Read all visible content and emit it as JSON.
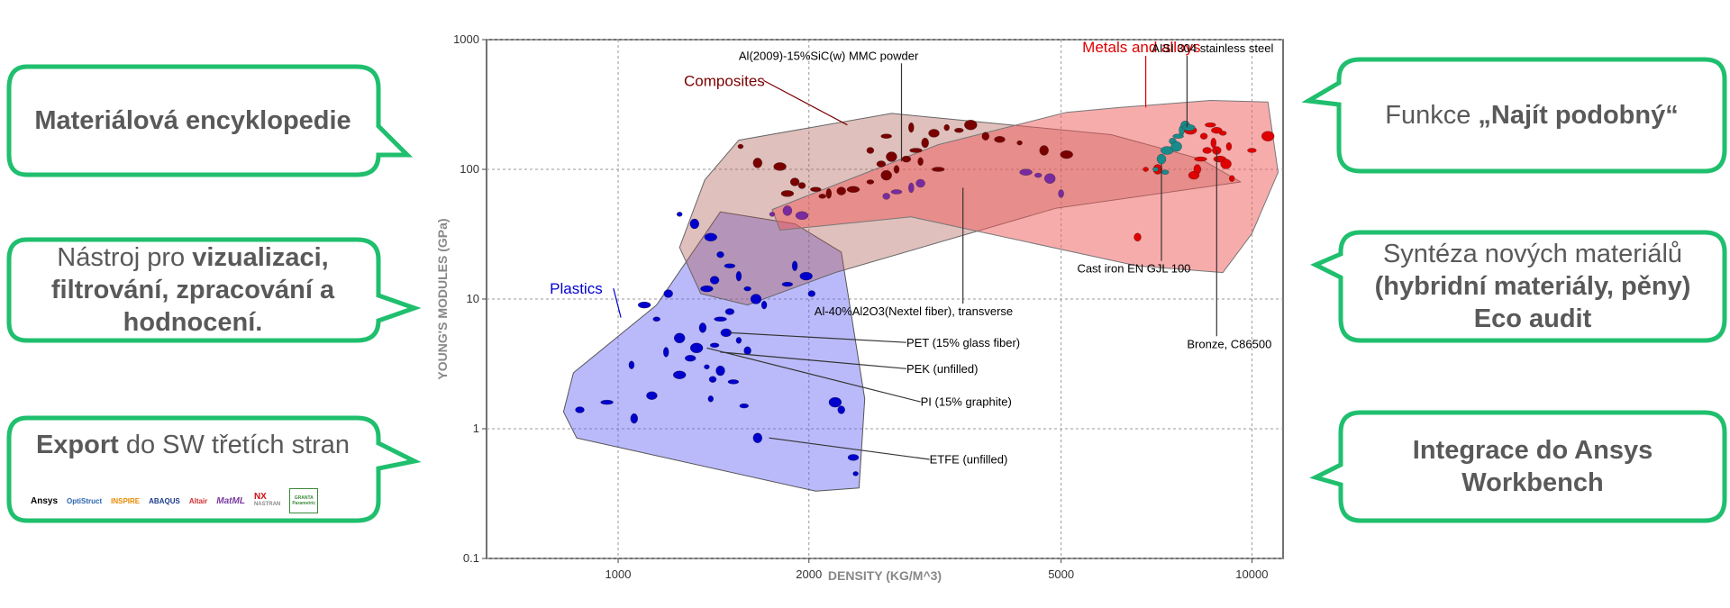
{
  "callouts": {
    "encyclopedia": {
      "bold": "Materiálová encyklopedie"
    },
    "visualization": {
      "pre": "Nástroj pro ",
      "bold1": "vizualizaci,",
      "bold2": "filtrování, zpracování a",
      "bold3": "hodnocení."
    },
    "export": {
      "bold": "Export",
      "rest": " do SW třetích stran"
    },
    "similar": {
      "pre": "Funkce ",
      "bold": "„Najít podobný“"
    },
    "synthesis": {
      "line1": "Syntéza nových materiálů",
      "line2": "(hybridní materiály, pěny)",
      "line3": "Eco audit"
    },
    "integration": {
      "line1": "Integrace do Ansys",
      "line2": "Workbench"
    }
  },
  "logos": [
    "Ansys",
    "OptiStruct",
    "INSPIRE",
    "ABAQUS",
    "Altair",
    "MatML",
    "NX",
    "NASTRAN"
  ],
  "logo_badge": "GRANTA Parametric",
  "colors": {
    "accent_green": "#1fbf6e",
    "text_gray": "#595959",
    "plastics": "#0000cc",
    "composites": "#7a0000",
    "metals": "#e00000",
    "cast_iron": "#1a8a8a"
  },
  "chart_data": {
    "type": "scatter",
    "xlabel": "DENSITY (KG/M^3)",
    "ylabel": "YOUNG'S MODULES (GPa)",
    "x_scale": "log",
    "y_scale": "log",
    "xlim": [
      620,
      11200
    ],
    "ylim": [
      0.1,
      1000
    ],
    "x_ticks": [
      1000,
      2000,
      5000,
      10000
    ],
    "x_tick_labels": [
      "1000",
      "2000",
      "5000",
      "10000"
    ],
    "y_ticks": [
      0.1,
      1,
      10,
      100,
      1000
    ],
    "y_tick_labels": [
      "0.1",
      "1",
      "10",
      "100",
      "1000"
    ],
    "grid": true,
    "envelopes": [
      {
        "name": "Plastics",
        "color": "#0000cc",
        "points": [
          [
            820,
            1.35
          ],
          [
            850,
            2.7
          ],
          [
            1150,
            9
          ],
          [
            1450,
            47
          ],
          [
            1900,
            38
          ],
          [
            2250,
            23
          ],
          [
            2450,
            1.7
          ],
          [
            2400,
            0.35
          ],
          [
            2050,
            0.33
          ],
          [
            860,
            0.85
          ]
        ]
      },
      {
        "name": "Composites",
        "color": "#7a0000",
        "points": [
          [
            1250,
            25
          ],
          [
            1370,
            83
          ],
          [
            1550,
            168
          ],
          [
            2700,
            270
          ],
          [
            6000,
            185
          ],
          [
            8300,
            120
          ],
          [
            9600,
            80
          ],
          [
            4900,
            50
          ],
          [
            2200,
            16
          ],
          [
            1600,
            9
          ],
          [
            1350,
            11
          ]
        ]
      },
      {
        "name": "Metals and alloys",
        "color": "#e00000",
        "points": [
          [
            1750,
            49
          ],
          [
            1800,
            34
          ],
          [
            2900,
            43
          ],
          [
            6600,
            18
          ],
          [
            9000,
            16
          ],
          [
            10000,
            32
          ],
          [
            11000,
            95
          ],
          [
            10600,
            330
          ],
          [
            8600,
            340
          ],
          [
            6200,
            300
          ],
          [
            5100,
            275
          ],
          [
            3200,
            155
          ]
        ]
      }
    ],
    "series": [
      {
        "name": "Plastics",
        "color": "#0000cc",
        "points": [
          [
            1250,
            45
          ],
          [
            1320,
            38
          ],
          [
            1400,
            30
          ],
          [
            1450,
            22
          ],
          [
            1500,
            18
          ],
          [
            1550,
            15
          ],
          [
            1420,
            14
          ],
          [
            1380,
            12
          ],
          [
            1600,
            12
          ],
          [
            1650,
            10
          ],
          [
            1700,
            9
          ],
          [
            1500,
            8
          ],
          [
            1450,
            7
          ],
          [
            1360,
            6
          ],
          [
            1480,
            5.5
          ],
          [
            1550,
            4.8
          ],
          [
            1420,
            4.4
          ],
          [
            1330,
            4.2
          ],
          [
            1600,
            4
          ],
          [
            1300,
            3.5
          ],
          [
            1380,
            3
          ],
          [
            1450,
            2.8
          ],
          [
            1250,
            2.6
          ],
          [
            1410,
            2.4
          ],
          [
            1520,
            2.3
          ],
          [
            1190,
            3.9
          ],
          [
            1200,
            11
          ],
          [
            1100,
            9
          ],
          [
            1150,
            7
          ],
          [
            1250,
            5
          ],
          [
            1050,
            3.1
          ],
          [
            870,
            1.4
          ],
          [
            960,
            1.6
          ],
          [
            1060,
            1.2
          ],
          [
            1130,
            1.8
          ],
          [
            1400,
            1.7
          ],
          [
            1580,
            1.5
          ],
          [
            2200,
            1.6
          ],
          [
            2250,
            1.4
          ],
          [
            2350,
            0.6
          ],
          [
            2370,
            0.45
          ],
          [
            1660,
            0.85
          ],
          [
            1980,
            15
          ],
          [
            2020,
            11
          ],
          [
            1850,
            13
          ],
          [
            1900,
            18
          ]
        ]
      },
      {
        "name": "Composites",
        "color": "#7a0000",
        "points": [
          [
            1560,
            150
          ],
          [
            1660,
            112
          ],
          [
            1800,
            105
          ],
          [
            1950,
            75
          ],
          [
            2050,
            70
          ],
          [
            2150,
            65
          ],
          [
            2250,
            68
          ],
          [
            2350,
            70
          ],
          [
            2500,
            80
          ],
          [
            2650,
            90
          ],
          [
            2750,
            100
          ],
          [
            2850,
            120
          ],
          [
            2950,
            140
          ],
          [
            3050,
            160
          ],
          [
            3150,
            190
          ],
          [
            3300,
            210
          ],
          [
            3450,
            200
          ],
          [
            3600,
            220
          ],
          [
            3800,
            180
          ],
          [
            4000,
            170
          ],
          [
            4300,
            160
          ],
          [
            4700,
            140
          ],
          [
            5100,
            130
          ],
          [
            2500,
            140
          ],
          [
            2650,
            180
          ],
          [
            2900,
            210
          ],
          [
            1900,
            80
          ],
          [
            1850,
            65
          ],
          [
            2100,
            62
          ],
          [
            2700,
            125
          ],
          [
            3000,
            115
          ],
          [
            2600,
            110
          ],
          [
            3200,
            100
          ]
        ]
      },
      {
        "name": "Metals and alloys",
        "color": "#e00000",
        "points": [
          [
            6800,
            100
          ],
          [
            7100,
            100
          ],
          [
            8000,
            200
          ],
          [
            8400,
            180
          ],
          [
            8600,
            220
          ],
          [
            8700,
            160
          ],
          [
            8800,
            140
          ],
          [
            8900,
            120
          ],
          [
            9000,
            190
          ],
          [
            9100,
            110
          ],
          [
            9200,
            150
          ],
          [
            8500,
            140
          ],
          [
            8300,
            120
          ],
          [
            8200,
            100
          ],
          [
            8100,
            90
          ],
          [
            9300,
            85
          ],
          [
            10000,
            140
          ],
          [
            10600,
            180
          ],
          [
            6600,
            30
          ],
          [
            8800,
            200
          ]
        ]
      },
      {
        "name": "Cast iron",
        "color": "#1a8a8a",
        "points": [
          [
            7050,
            100
          ],
          [
            7200,
            120
          ],
          [
            7350,
            140
          ],
          [
            7500,
            165
          ],
          [
            7650,
            180
          ],
          [
            7750,
            200
          ],
          [
            7850,
            220
          ],
          [
            7950,
            210
          ],
          [
            7300,
            95
          ],
          [
            7600,
            150
          ]
        ]
      },
      {
        "name": "Purple",
        "color": "#7a2aa0",
        "points": [
          [
            1750,
            45
          ],
          [
            1850,
            48
          ],
          [
            1950,
            44
          ],
          [
            2650,
            62
          ],
          [
            2750,
            67
          ],
          [
            2900,
            72
          ],
          [
            3000,
            78
          ],
          [
            4400,
            95
          ],
          [
            4600,
            90
          ],
          [
            4800,
            85
          ],
          [
            5000,
            65
          ]
        ]
      }
    ],
    "annotations": [
      {
        "text": "Metals and alloys",
        "color": "#e00000",
        "x": 5400,
        "y": 800,
        "target": [
          6800,
          300
        ]
      },
      {
        "text": "Composites",
        "color": "#7a0000",
        "x": 1270,
        "y": 440,
        "target": [
          2300,
          220
        ]
      },
      {
        "text": "Plastics",
        "color": "#0000cc",
        "x": 780,
        "y": 11,
        "target": [
          1010,
          7.2
        ]
      },
      {
        "text": "Al(2009)-15%SiC(w) MMC powder",
        "color": "#000000",
        "x": 1550,
        "y": 700,
        "target": [
          2800,
          115
        ]
      },
      {
        "text": "AISI 304 stainless steel",
        "color": "#000000",
        "x": 6950,
        "y": 800,
        "target": [
          7900,
          210
        ]
      },
      {
        "text": "Cast iron EN GJL 100",
        "color": "#000000",
        "x": 5300,
        "y": 16,
        "target": [
          7200,
          110
        ]
      },
      {
        "text": "Al-40%Al2O3(Nextel fiber), transverse",
        "color": "#000000",
        "x": 2040,
        "y": 7.5,
        "target": [
          3500,
          72
        ]
      },
      {
        "text": "Bronze, C86500",
        "color": "#000000",
        "x": 7900,
        "y": 4.2,
        "target": [
          8800,
          140
        ]
      },
      {
        "text": "PET (15% glass fiber)",
        "color": "#000000",
        "x": 2850,
        "y": 4.3,
        "target": [
          1500,
          5.5
        ]
      },
      {
        "text": "PEK (unfilled)",
        "color": "#000000",
        "x": 2850,
        "y": 2.7,
        "target": [
          1450,
          3.9
        ]
      },
      {
        "text": "PI (15% graphite)",
        "color": "#000000",
        "x": 3000,
        "y": 1.5,
        "target": [
          1380,
          4.2
        ]
      },
      {
        "text": "ETFE (unfilled)",
        "color": "#000000",
        "x": 3100,
        "y": 0.54,
        "target": [
          1730,
          0.85
        ]
      }
    ]
  }
}
